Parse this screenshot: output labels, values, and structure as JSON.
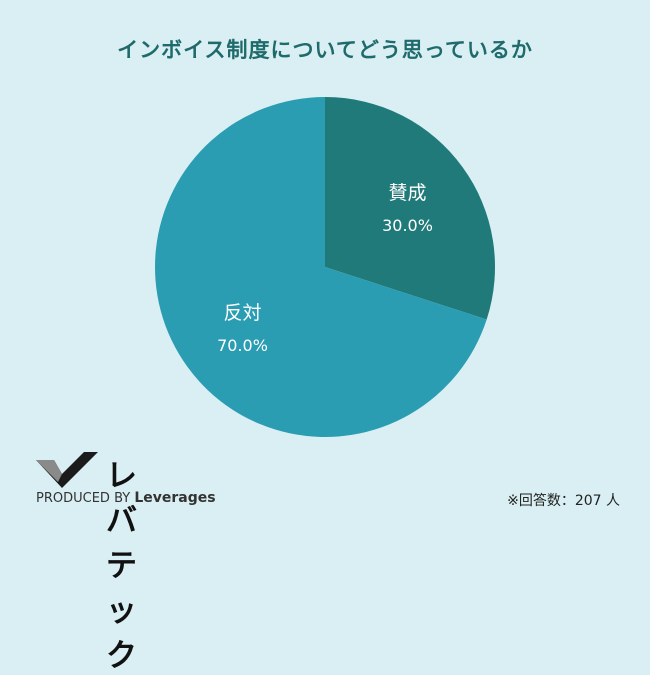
{
  "chart_data": {
    "type": "pie",
    "title": "インボイス制度についてどう思っているか",
    "slices": [
      {
        "label": "賛成",
        "value": 30.0,
        "display": "30.0%",
        "color": "#217a7a"
      },
      {
        "label": "反対",
        "value": 70.0,
        "display": "70.0%",
        "color": "#2a9db2"
      }
    ]
  },
  "logo": {
    "name": "レバテック",
    "produced_by": "PRODUCED BY",
    "brand": "Leverages",
    "icon": "checkmark-logo-icon"
  },
  "note": "※回答数：207 人",
  "colors": {
    "background": "#d9eff3",
    "title": "#1f6b6b"
  }
}
